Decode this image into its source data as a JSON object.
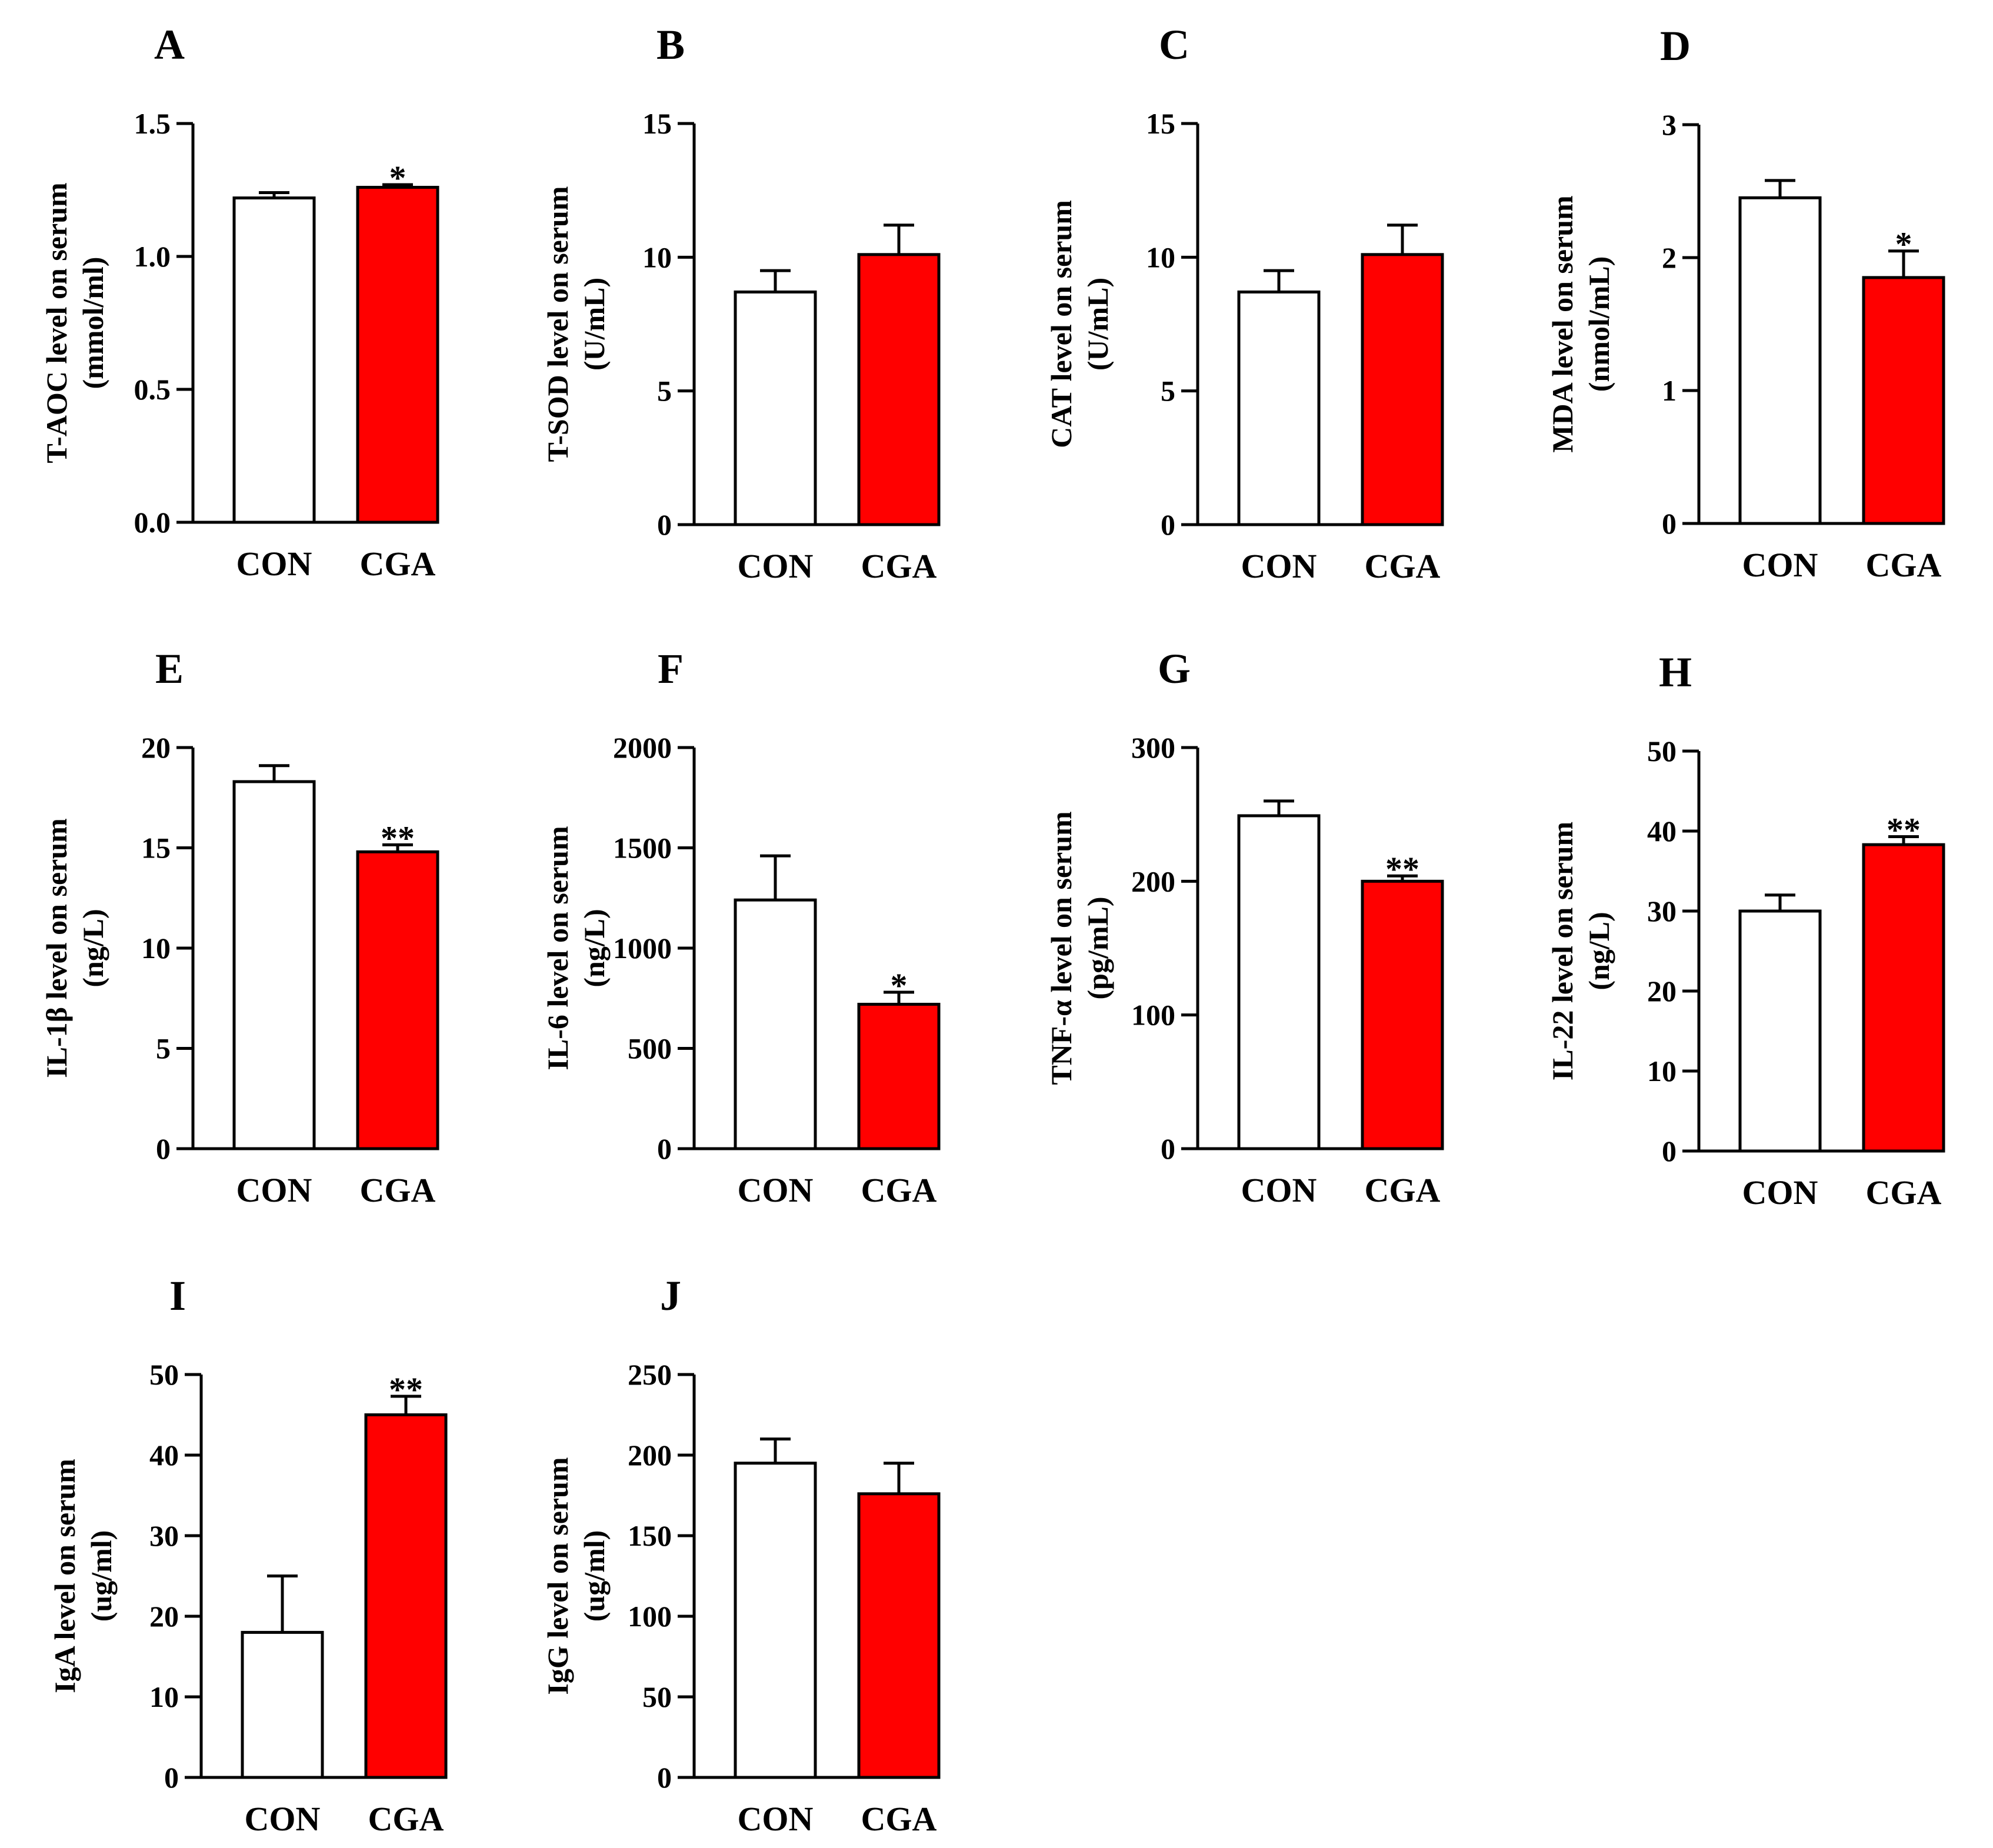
{
  "figure": {
    "colors": {
      "con_fill": "#ffffff",
      "cga_fill": "#ff0000",
      "stroke": "#000000"
    }
  },
  "chart_data": [
    {
      "panel": "A",
      "type": "bar",
      "title": "",
      "xlabel": "",
      "ylabel": [
        "T-AOC level on serum",
        "(mmol/ml)"
      ],
      "categories": [
        "CON",
        "CGA"
      ],
      "values": [
        1.22,
        1.26
      ],
      "errors": [
        0.02,
        0.01
      ],
      "significance": [
        "",
        "*"
      ],
      "ylim": [
        0,
        1.5
      ],
      "yticks": [
        0,
        0.5,
        1.0,
        1.5
      ],
      "ytick_labels": [
        "0.0",
        "0.5",
        "1.0",
        "1.5"
      ]
    },
    {
      "panel": "B",
      "type": "bar",
      "title": "",
      "xlabel": "",
      "ylabel": [
        "T-SOD level on serum",
        "(U/mL)"
      ],
      "categories": [
        "CON",
        "CGA"
      ],
      "values": [
        8.7,
        10.1
      ],
      "errors": [
        0.8,
        1.1
      ],
      "significance": [
        "",
        ""
      ],
      "ylim": [
        0,
        15
      ],
      "yticks": [
        0,
        5,
        10,
        15
      ],
      "ytick_labels": [
        "0",
        "5",
        "10",
        "15"
      ]
    },
    {
      "panel": "C",
      "type": "bar",
      "title": "",
      "xlabel": "",
      "ylabel": [
        "CAT level on serum",
        "(U/mL)"
      ],
      "categories": [
        "CON",
        "CGA"
      ],
      "values": [
        8.7,
        10.1
      ],
      "errors": [
        0.8,
        1.1
      ],
      "significance": [
        "",
        ""
      ],
      "ylim": [
        0,
        15
      ],
      "yticks": [
        0,
        5,
        10,
        15
      ],
      "ytick_labels": [
        "0",
        "5",
        "10",
        "15"
      ]
    },
    {
      "panel": "D",
      "type": "bar",
      "title": "",
      "xlabel": "",
      "ylabel": [
        "MDA level on serum",
        "(nmol/mL)"
      ],
      "categories": [
        "CON",
        "CGA"
      ],
      "values": [
        2.45,
        1.85
      ],
      "errors": [
        0.13,
        0.2
      ],
      "significance": [
        "",
        "*"
      ],
      "ylim": [
        0,
        3
      ],
      "yticks": [
        0,
        1,
        2,
        3
      ],
      "ytick_labels": [
        "0",
        "1",
        "2",
        "3"
      ]
    },
    {
      "panel": "E",
      "type": "bar",
      "title": "",
      "xlabel": "",
      "ylabel": [
        "IL-1β level on serum",
        "(ng/L)"
      ],
      "categories": [
        "CON",
        "CGA"
      ],
      "values": [
        18.3,
        14.8
      ],
      "errors": [
        0.8,
        0.35
      ],
      "significance": [
        "",
        "**"
      ],
      "ylim": [
        0,
        20
      ],
      "yticks": [
        0,
        5,
        10,
        15,
        20
      ],
      "ytick_labels": [
        "0",
        "5",
        "10",
        "15",
        "20"
      ]
    },
    {
      "panel": "F",
      "type": "bar",
      "title": "",
      "xlabel": "",
      "ylabel": [
        "IL-6 level on serum",
        "(ng/L)"
      ],
      "categories": [
        "CON",
        "CGA"
      ],
      "values": [
        1240,
        720
      ],
      "errors": [
        220,
        60
      ],
      "significance": [
        "",
        "*"
      ],
      "ylim": [
        0,
        2000
      ],
      "yticks": [
        0,
        500,
        1000,
        1500,
        2000
      ],
      "ytick_labels": [
        "0",
        "500",
        "1000",
        "1500",
        "2000"
      ]
    },
    {
      "panel": "G",
      "type": "bar",
      "title": "",
      "xlabel": "",
      "ylabel": [
        "TNF-α level on serum",
        "(pg/mL)"
      ],
      "categories": [
        "CON",
        "CGA"
      ],
      "values": [
        249,
        200
      ],
      "errors": [
        11,
        4
      ],
      "significance": [
        "",
        "**"
      ],
      "ylim": [
        0,
        300
      ],
      "yticks": [
        0,
        100,
        200,
        300
      ],
      "ytick_labels": [
        "0",
        "100",
        "200",
        "300"
      ]
    },
    {
      "panel": "H",
      "type": "bar",
      "title": "",
      "xlabel": "",
      "ylabel": [
        "IL-22 level on serum",
        "(ng/L)"
      ],
      "categories": [
        "CON",
        "CGA"
      ],
      "values": [
        30,
        38.3
      ],
      "errors": [
        2,
        1
      ],
      "significance": [
        "",
        "**"
      ],
      "ylim": [
        0,
        50
      ],
      "yticks": [
        0,
        10,
        20,
        30,
        40,
        50
      ],
      "ytick_labels": [
        "0",
        "10",
        "20",
        "30",
        "40",
        "50"
      ]
    },
    {
      "panel": "I",
      "type": "bar",
      "title": "",
      "xlabel": "",
      "ylabel": [
        "IgA level on serum",
        "(ug/ml)"
      ],
      "categories": [
        "CON",
        "CGA"
      ],
      "values": [
        18,
        45
      ],
      "errors": [
        7,
        2.3
      ],
      "significance": [
        "",
        "**"
      ],
      "ylim": [
        0,
        50
      ],
      "yticks": [
        0,
        10,
        20,
        30,
        40,
        50
      ],
      "ytick_labels": [
        "0",
        "10",
        "20",
        "30",
        "40",
        "50"
      ]
    },
    {
      "panel": "J",
      "type": "bar",
      "title": "",
      "xlabel": "",
      "ylabel": [
        "IgG level on serum",
        "(ug/ml)"
      ],
      "categories": [
        "CON",
        "CGA"
      ],
      "values": [
        195,
        176
      ],
      "errors": [
        15,
        19
      ],
      "significance": [
        "",
        ""
      ],
      "ylim": [
        0,
        250
      ],
      "yticks": [
        0,
        50,
        100,
        150,
        200,
        250
      ],
      "ytick_labels": [
        "0",
        "50",
        "100",
        "150",
        "200",
        "250"
      ]
    }
  ]
}
